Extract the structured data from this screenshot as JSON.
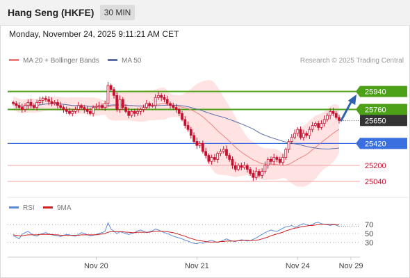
{
  "header": {
    "title": "Hang Seng (HKFE)",
    "timeframe": "30 MIN",
    "datetime": "Monday, November 24, 2025 9:11:21 AM CET"
  },
  "legend": {
    "bollinger": "MA 20 + Bollinger Bands",
    "ma50": "MA 50",
    "credit": "Research © 2025 Trading Central",
    "rsi": "RSI",
    "rsi_ma": "9MA"
  },
  "colors": {
    "candle": "#c8102e",
    "bollinger_fill": "#ffd9d9",
    "ma20": "#f08080",
    "ma50": "#5a6fa8",
    "resistance": "#4ca116",
    "support": "#3a6fe0",
    "target_line": "#f4a3a3",
    "arrow": "#2e62b0",
    "rsi": "#5b8bd6",
    "rsi_ma": "#cc1f1f"
  },
  "chart_data": {
    "type": "candlestick",
    "price_axis": {
      "min": 24880,
      "max": 26160
    },
    "levels": [
      {
        "value": 25940,
        "label": "25940",
        "kind": "resistance"
      },
      {
        "value": 25760,
        "label": "25760",
        "kind": "resistance"
      },
      {
        "value": 25650,
        "label": "25650",
        "kind": "last_price"
      },
      {
        "value": 25420,
        "label": "25420",
        "kind": "support"
      },
      {
        "value": 25200,
        "label": "25200",
        "kind": "target"
      },
      {
        "value": 25040,
        "label": "25040",
        "kind": "target"
      }
    ],
    "x_ticks": [
      "Nov 20",
      "Nov 21",
      "Nov 24",
      "Nov 29"
    ],
    "x_tick_index": [
      28,
      62,
      96,
      114
    ],
    "closes": [
      25820,
      25800,
      25780,
      25760,
      25800,
      25830,
      25800,
      25780,
      25830,
      25850,
      25870,
      25860,
      25840,
      25820,
      25830,
      25800,
      25780,
      25760,
      25740,
      25720,
      25740,
      25760,
      25800,
      25780,
      25760,
      25740,
      25720,
      25780,
      25790,
      25800,
      25780,
      25820,
      26000,
      25960,
      25900,
      25760,
      25860,
      25780,
      25740,
      25700,
      25740,
      25720,
      25740,
      25760,
      25780,
      25820,
      25800,
      25800,
      25880,
      25900,
      25880,
      25860,
      25820,
      25800,
      25780,
      25760,
      25720,
      25660,
      25600,
      25560,
      25500,
      25440,
      25400,
      25420,
      25340,
      25300,
      25240,
      25280,
      25260,
      25320,
      25340,
      25360,
      25300,
      25260,
      25200,
      25160,
      25200,
      25180,
      25200,
      25160,
      25120,
      25080,
      25140,
      25100,
      25140,
      25200,
      25260,
      25240,
      25280,
      25260,
      25230,
      25280,
      25360,
      25440,
      25480,
      25520,
      25560,
      25480,
      25520,
      25500,
      25560,
      25600,
      25620,
      25580,
      25620,
      25660,
      25700,
      25740,
      25720,
      25680,
      25650
    ],
    "rsi": {
      "axis": {
        "min": 0,
        "max": 100
      },
      "ticks": [
        "70",
        "50",
        "30"
      ],
      "values": [
        45,
        42,
        38,
        48,
        52,
        55,
        50,
        46,
        44,
        48,
        50,
        52,
        49,
        47,
        46,
        45,
        43,
        46,
        48,
        47,
        45,
        44,
        48,
        52,
        50,
        47,
        45,
        46,
        48,
        50,
        52,
        55,
        74,
        60,
        55,
        50,
        54,
        52,
        50,
        48,
        50,
        52,
        56,
        58,
        55,
        52,
        54,
        56,
        60,
        58,
        55,
        52,
        50,
        47,
        44,
        42,
        40,
        38,
        35,
        33,
        30,
        28,
        27,
        30,
        28,
        30,
        33,
        35,
        32,
        30,
        32,
        35,
        38,
        35,
        33,
        32,
        34,
        36,
        35,
        33,
        34,
        37,
        40,
        44,
        48,
        52,
        55,
        58,
        56,
        55,
        58,
        62,
        65,
        66,
        68,
        64,
        66,
        70,
        72,
        70,
        68,
        70,
        74,
        75,
        72,
        71,
        70,
        68,
        70,
        69,
        66
      ],
      "ma_values": [
        47,
        46,
        45,
        45,
        46,
        47,
        47,
        47,
        47,
        48,
        48,
        48,
        48,
        48,
        47,
        47,
        46,
        46,
        46,
        46,
        46,
        46,
        46,
        47,
        47,
        47,
        47,
        47,
        47,
        48,
        49,
        50,
        53,
        54,
        54,
        54,
        54,
        54,
        53,
        53,
        52,
        52,
        53,
        53,
        53,
        53,
        53,
        54,
        55,
        55,
        55,
        55,
        54,
        53,
        52,
        50,
        48,
        46,
        44,
        41,
        39,
        37,
        35,
        34,
        33,
        32,
        31,
        31,
        31,
        31,
        32,
        32,
        33,
        33,
        33,
        33,
        34,
        34,
        35,
        35,
        34,
        35,
        35,
        36,
        38,
        40,
        42,
        45,
        47,
        49,
        51,
        53,
        56,
        58,
        60,
        62,
        63,
        65,
        66,
        67,
        68,
        68,
        69,
        70,
        71,
        71,
        71,
        71,
        71,
        70,
        70
      ]
    }
  }
}
